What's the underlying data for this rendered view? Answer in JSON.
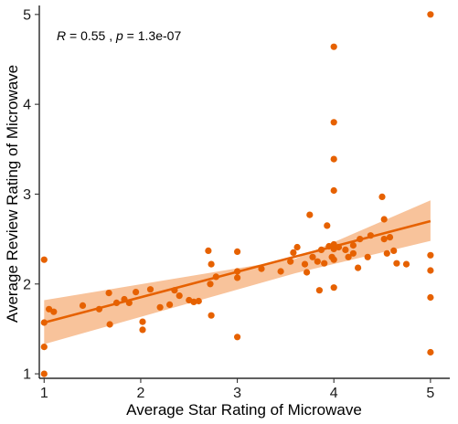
{
  "chart_data": {
    "type": "scatter",
    "title": "",
    "xlabel": "Average Star Rating of Microwave",
    "ylabel": "Average Review Rating of Microwave",
    "xlim": [
      0.95,
      5.2
    ],
    "ylim": [
      0.95,
      5.1
    ],
    "xticks": [
      "1",
      "2",
      "3",
      "4",
      "5"
    ],
    "yticks": [
      "1",
      "2",
      "3",
      "4",
      "5"
    ],
    "grid": false,
    "legend": "none",
    "point_color": "#E66100",
    "line_color": "#E66100",
    "band_color": "#F7B98A",
    "annotation": {
      "r_symbol": "R",
      "r_text": " = 0.55 , ",
      "p_symbol": "p",
      "p_text": " = 1.3e-07"
    },
    "regression": {
      "x": [
        1,
        5
      ],
      "y": [
        1.57,
        2.7
      ],
      "band_lower": [
        1.33,
        2.48
      ],
      "band_upper": [
        1.82,
        2.93
      ],
      "band_mid_x": 3.6,
      "band_mid_lower": [
        2.12
      ],
      "band_mid_upper": [
        2.28
      ]
    },
    "points": [
      [
        1.0,
        2.27
      ],
      [
        1.0,
        1.57
      ],
      [
        1.0,
        1.3
      ],
      [
        1.0,
        1.0
      ],
      [
        1.05,
        1.72
      ],
      [
        1.1,
        1.69
      ],
      [
        1.4,
        1.76
      ],
      [
        1.57,
        1.72
      ],
      [
        1.67,
        1.9
      ],
      [
        1.68,
        1.55
      ],
      [
        1.75,
        1.79
      ],
      [
        1.83,
        1.83
      ],
      [
        1.88,
        1.79
      ],
      [
        1.95,
        1.91
      ],
      [
        2.02,
        1.58
      ],
      [
        2.02,
        1.49
      ],
      [
        2.1,
        1.94
      ],
      [
        2.2,
        1.74
      ],
      [
        2.3,
        1.77
      ],
      [
        2.35,
        1.93
      ],
      [
        2.4,
        1.87
      ],
      [
        2.5,
        1.82
      ],
      [
        2.55,
        1.8
      ],
      [
        2.6,
        1.81
      ],
      [
        2.7,
        2.37
      ],
      [
        2.72,
        2.0
      ],
      [
        2.73,
        2.22
      ],
      [
        2.73,
        1.65
      ],
      [
        2.78,
        2.08
      ],
      [
        3.0,
        2.36
      ],
      [
        3.0,
        2.14
      ],
      [
        3.0,
        2.07
      ],
      [
        3.0,
        1.41
      ],
      [
        3.25,
        2.17
      ],
      [
        3.45,
        2.14
      ],
      [
        3.55,
        2.25
      ],
      [
        3.58,
        2.35
      ],
      [
        3.62,
        2.41
      ],
      [
        3.7,
        2.22
      ],
      [
        3.72,
        2.13
      ],
      [
        3.75,
        2.77
      ],
      [
        3.78,
        2.3
      ],
      [
        3.83,
        2.25
      ],
      [
        3.85,
        1.93
      ],
      [
        3.87,
        2.38
      ],
      [
        3.9,
        2.23
      ],
      [
        3.93,
        2.65
      ],
      [
        3.95,
        2.42
      ],
      [
        3.98,
        2.3
      ],
      [
        4.0,
        4.64
      ],
      [
        4.0,
        3.8
      ],
      [
        4.0,
        3.39
      ],
      [
        4.0,
        3.04
      ],
      [
        4.0,
        2.44
      ],
      [
        4.0,
        2.39
      ],
      [
        4.0,
        2.27
      ],
      [
        4.0,
        1.96
      ],
      [
        4.05,
        2.41
      ],
      [
        4.12,
        2.38
      ],
      [
        4.15,
        2.3
      ],
      [
        4.2,
        2.43
      ],
      [
        4.2,
        2.34
      ],
      [
        4.25,
        2.18
      ],
      [
        4.27,
        2.5
      ],
      [
        4.35,
        2.3
      ],
      [
        4.38,
        2.54
      ],
      [
        4.5,
        2.97
      ],
      [
        4.52,
        2.72
      ],
      [
        4.52,
        2.5
      ],
      [
        4.55,
        2.34
      ],
      [
        4.58,
        2.52
      ],
      [
        4.62,
        2.37
      ],
      [
        4.65,
        2.23
      ],
      [
        4.75,
        2.22
      ],
      [
        5.0,
        5.0
      ],
      [
        5.0,
        2.32
      ],
      [
        5.0,
        2.15
      ],
      [
        5.0,
        1.85
      ],
      [
        5.0,
        1.24
      ]
    ]
  }
}
